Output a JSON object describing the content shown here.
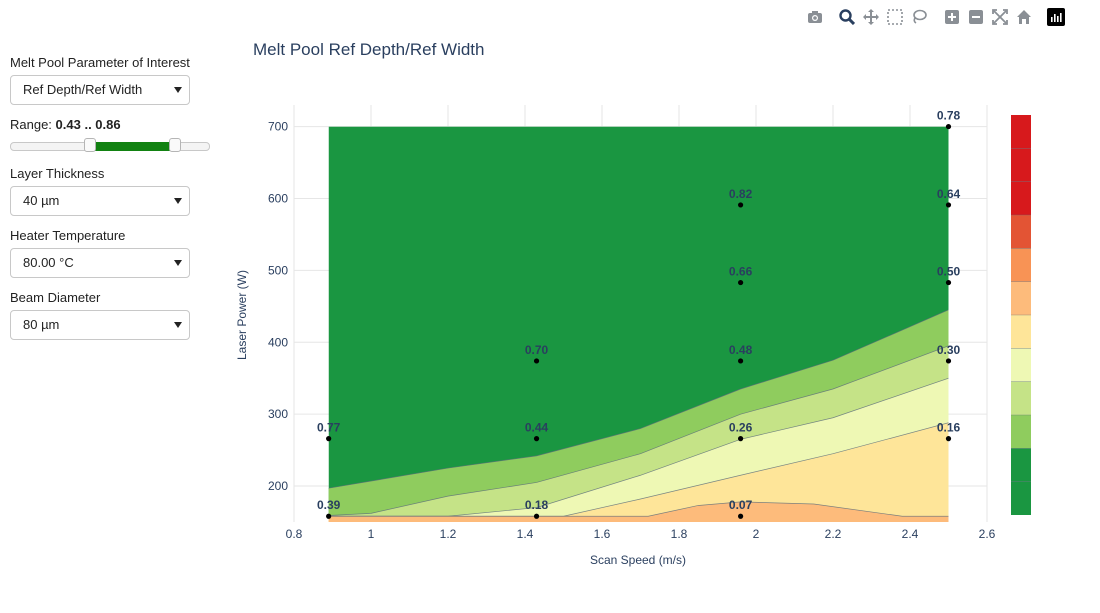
{
  "controls": {
    "parameter_label": "Melt Pool Parameter of Interest",
    "parameter_value": "Ref Depth/Ref Width",
    "range_label": "Range:",
    "range_value": "0.43 .. 0.86",
    "range_fraction": [
      0.43,
      0.86
    ],
    "layer_label": "Layer Thickness",
    "layer_value": "40 µm",
    "heater_label": "Heater Temperature",
    "heater_value": "80.00 °C",
    "beam_label": "Beam Diameter",
    "beam_value": "80 µm"
  },
  "toolbar": [
    "camera-icon",
    "zoom-icon",
    "pan-icon",
    "box-select-icon",
    "lasso-select-icon",
    "zoom-in-icon",
    "zoom-out-icon",
    "autoscale-icon",
    "reset-axes-icon",
    "plotly-logo-icon"
  ],
  "colors": {
    "slider_fill": "#128212",
    "colorbar": [
      "#1a9641",
      "#1a9641",
      "#8fcc5e",
      "#c5e387",
      "#eef8b4",
      "#fee599",
      "#fdbb7b",
      "#f89355",
      "#e35434",
      "#d7191c",
      "#d7191c",
      "#d7191c"
    ]
  },
  "chart_data": {
    "type": "contour",
    "title": "Melt Pool Ref Depth/Ref Width",
    "xlabel": "Scan Speed (m/s)",
    "ylabel": "Laser Power (W)",
    "xlim": [
      0.8,
      2.6
    ],
    "ylim": [
      150,
      730
    ],
    "xticks": [
      "0.8",
      "1",
      "1.2",
      "1.4",
      "1.6",
      "1.8",
      "2",
      "2.2",
      "2.4",
      "2.6"
    ],
    "xtick_values": [
      0.8,
      1,
      1.2,
      1.4,
      1.6,
      1.8,
      2,
      2.2,
      2.4,
      2.6
    ],
    "yticks": [
      "200",
      "300",
      "400",
      "500",
      "600",
      "700"
    ],
    "ytick_values": [
      200,
      300,
      400,
      500,
      600,
      700
    ],
    "points": [
      {
        "x": 0.89,
        "y": 266,
        "label": "0.77"
      },
      {
        "x": 0.89,
        "y": 158,
        "label": "0.39"
      },
      {
        "x": 1.43,
        "y": 374,
        "label": "0.70"
      },
      {
        "x": 1.43,
        "y": 266,
        "label": "0.44"
      },
      {
        "x": 1.43,
        "y": 158,
        "label": "0.18"
      },
      {
        "x": 1.96,
        "y": 591,
        "label": "0.82"
      },
      {
        "x": 1.96,
        "y": 483,
        "label": "0.66"
      },
      {
        "x": 1.96,
        "y": 374,
        "label": "0.48"
      },
      {
        "x": 1.96,
        "y": 266,
        "label": "0.26"
      },
      {
        "x": 1.96,
        "y": 158,
        "label": "0.07"
      },
      {
        "x": 2.5,
        "y": 700,
        "label": "0.78"
      },
      {
        "x": 2.5,
        "y": 591,
        "label": "0.64"
      },
      {
        "x": 2.5,
        "y": 483,
        "label": "0.50"
      },
      {
        "x": 2.5,
        "y": 374,
        "label": "0.30"
      },
      {
        "x": 2.5,
        "y": 266,
        "label": "0.16"
      }
    ],
    "bands": [
      {
        "color": "#1a9641",
        "line": [
          [
            0.89,
            700
          ],
          [
            2.5,
            700
          ]
        ]
      },
      {
        "color": "#8fcc5e",
        "line": [
          [
            0.89,
            197
          ],
          [
            1.2,
            225
          ],
          [
            1.43,
            242
          ],
          [
            1.7,
            280
          ],
          [
            1.96,
            335
          ],
          [
            2.2,
            375
          ],
          [
            2.5,
            445
          ]
        ]
      },
      {
        "color": "#c5e387",
        "line": [
          [
            0.89,
            159
          ],
          [
            1.0,
            162
          ],
          [
            1.2,
            186
          ],
          [
            1.43,
            205
          ],
          [
            1.7,
            245
          ],
          [
            1.96,
            300
          ],
          [
            2.2,
            335
          ],
          [
            2.5,
            395
          ]
        ]
      },
      {
        "color": "#eef8b4",
        "line": [
          [
            1.2,
            158
          ],
          [
            1.43,
            170
          ],
          [
            1.7,
            215
          ],
          [
            1.96,
            265
          ],
          [
            2.2,
            295
          ],
          [
            2.5,
            350
          ]
        ]
      },
      {
        "color": "#fee599",
        "line": [
          [
            1.5,
            158
          ],
          [
            1.7,
            182
          ],
          [
            1.96,
            215
          ],
          [
            2.2,
            245
          ],
          [
            2.5,
            288
          ]
        ]
      },
      {
        "color": "#fdbb7b",
        "line": [
          [
            1.72,
            158
          ],
          [
            1.85,
            173
          ],
          [
            1.96,
            178
          ],
          [
            2.15,
            175
          ],
          [
            2.38,
            158
          ]
        ]
      }
    ]
  }
}
